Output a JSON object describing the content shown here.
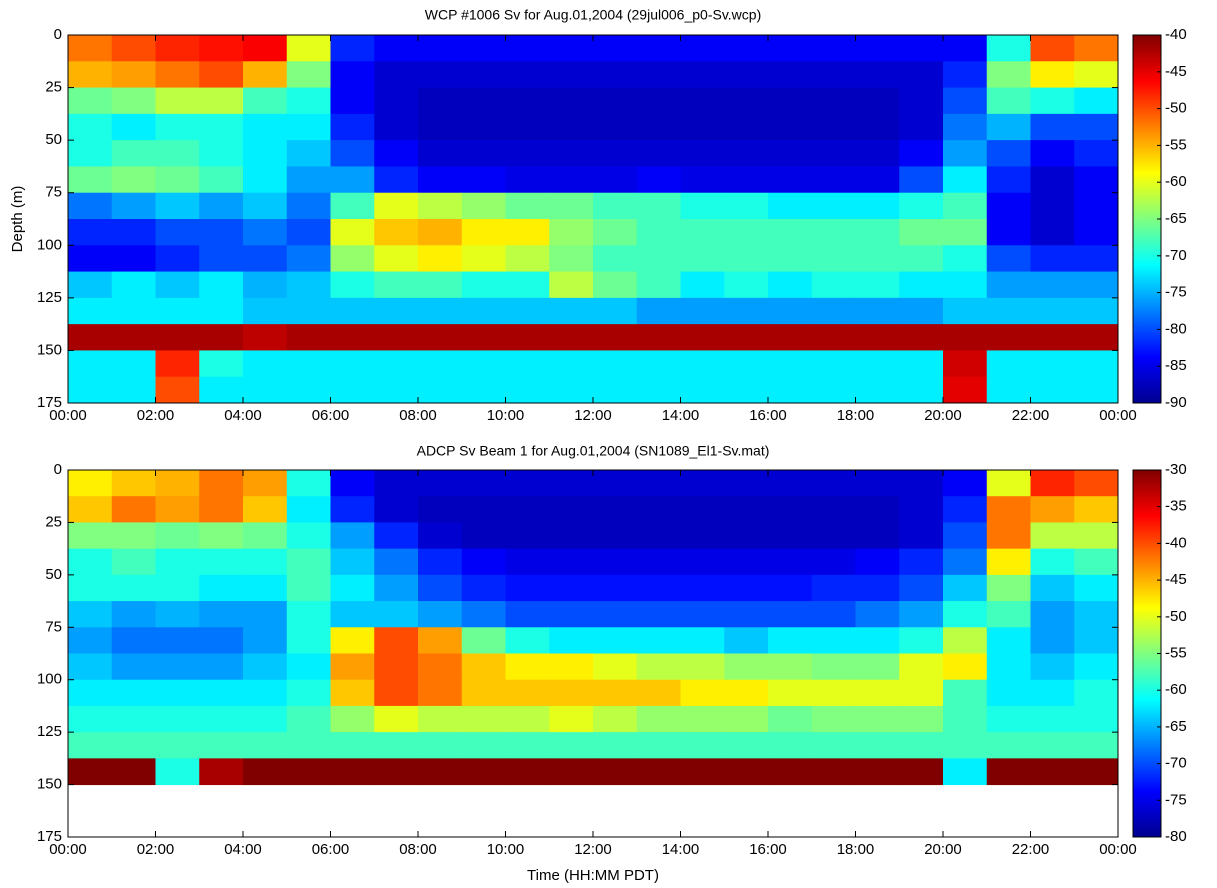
{
  "chart_data": [
    {
      "type": "heatmap",
      "title": "WCP #1006   Sv for Aug.01,2004    (29jul006_p0-Sv.wcp)",
      "ylabel": "Depth (m)",
      "colormap": "jet",
      "xlim": [
        0,
        24
      ],
      "xticks": [
        {
          "value": 0,
          "label": "00:00"
        },
        {
          "value": 2,
          "label": "02:00"
        },
        {
          "value": 4,
          "label": "04:00"
        },
        {
          "value": 6,
          "label": "06:00"
        },
        {
          "value": 8,
          "label": "08:00"
        },
        {
          "value": 10,
          "label": "10:00"
        },
        {
          "value": 12,
          "label": "12:00"
        },
        {
          "value": 14,
          "label": "14:00"
        },
        {
          "value": 16,
          "label": "16:00"
        },
        {
          "value": 18,
          "label": "18:00"
        },
        {
          "value": 20,
          "label": "20:00"
        },
        {
          "value": 22,
          "label": "22:00"
        },
        {
          "value": 24,
          "label": "00:00"
        }
      ],
      "ylim": [
        175,
        0
      ],
      "yticks": [
        0,
        25,
        50,
        75,
        100,
        125,
        150,
        175
      ],
      "clim": [
        -90,
        -40
      ],
      "cticks": [
        -40,
        -45,
        -50,
        -55,
        -60,
        -65,
        -70,
        -75,
        -80,
        -85,
        -90
      ],
      "x": [
        0.5,
        1.5,
        2.5,
        3.5,
        4.5,
        5.5,
        6.5,
        7.5,
        8.5,
        9.5,
        10.5,
        11.5,
        12.5,
        13.5,
        14.5,
        15.5,
        16.5,
        17.5,
        18.5,
        19.5,
        20.5,
        21.5,
        22.5,
        23.5
      ],
      "y": [
        6.25,
        18.75,
        31.25,
        43.75,
        56.25,
        68.75,
        81.25,
        93.75,
        106.25,
        118.75,
        131.25,
        143.75,
        156.25,
        168.75
      ],
      "values": [
        [
          -52,
          -50,
          -48,
          -47,
          -46,
          -60,
          -82,
          -84,
          -84,
          -84,
          -84,
          -84,
          -84,
          -84,
          -84,
          -84,
          -84,
          -84,
          -84,
          -84,
          -84,
          -70,
          -50,
          -52
        ],
        [
          -55,
          -54,
          -52,
          -50,
          -55,
          -65,
          -84,
          -86,
          -86,
          -86,
          -86,
          -86,
          -86,
          -86,
          -86,
          -86,
          -86,
          -86,
          -86,
          -86,
          -82,
          -65,
          -58,
          -60
        ],
        [
          -66,
          -65,
          -62,
          -62,
          -68,
          -70,
          -84,
          -86,
          -87,
          -87,
          -87,
          -87,
          -87,
          -87,
          -87,
          -87,
          -87,
          -87,
          -87,
          -86,
          -80,
          -68,
          -70,
          -72
        ],
        [
          -70,
          -72,
          -70,
          -70,
          -72,
          -72,
          -82,
          -86,
          -87,
          -87,
          -87,
          -87,
          -87,
          -87,
          -87,
          -87,
          -87,
          -87,
          -87,
          -86,
          -78,
          -75,
          -80,
          -80
        ],
        [
          -70,
          -68,
          -68,
          -70,
          -72,
          -74,
          -80,
          -84,
          -86,
          -86,
          -86,
          -86,
          -86,
          -86,
          -86,
          -86,
          -86,
          -86,
          -86,
          -84,
          -76,
          -80,
          -84,
          -82
        ],
        [
          -66,
          -65,
          -66,
          -68,
          -72,
          -76,
          -76,
          -82,
          -84,
          -84,
          -85,
          -85,
          -85,
          -84,
          -85,
          -85,
          -85,
          -85,
          -85,
          -80,
          -72,
          -82,
          -86,
          -84
        ],
        [
          -78,
          -76,
          -74,
          -76,
          -74,
          -78,
          -68,
          -60,
          -62,
          -64,
          -66,
          -66,
          -68,
          -68,
          -70,
          -70,
          -72,
          -72,
          -72,
          -70,
          -68,
          -84,
          -86,
          -84
        ],
        [
          -82,
          -82,
          -80,
          -80,
          -78,
          -80,
          -60,
          -56,
          -55,
          -58,
          -58,
          -64,
          -66,
          -68,
          -68,
          -68,
          -68,
          -68,
          -68,
          -66,
          -66,
          -84,
          -86,
          -84
        ],
        [
          -84,
          -84,
          -82,
          -80,
          -80,
          -78,
          -64,
          -60,
          -58,
          -60,
          -62,
          -65,
          -68,
          -68,
          -68,
          -68,
          -68,
          -68,
          -68,
          -68,
          -70,
          -80,
          -82,
          -82
        ],
        [
          -74,
          -72,
          -74,
          -72,
          -75,
          -74,
          -70,
          -68,
          -68,
          -70,
          -70,
          -62,
          -66,
          -68,
          -72,
          -70,
          -72,
          -70,
          -70,
          -72,
          -72,
          -76,
          -76,
          -76
        ],
        [
          -72,
          -72,
          -72,
          -72,
          -74,
          -74,
          -74,
          -74,
          -74,
          -74,
          -74,
          -74,
          -74,
          -76,
          -76,
          -76,
          -76,
          -76,
          -76,
          -76,
          -74,
          -74,
          -74,
          -74
        ],
        [
          -42,
          -42,
          -42,
          -42,
          -43,
          -42,
          -42,
          -42,
          -42,
          -42,
          -42,
          -42,
          -42,
          -42,
          -42,
          -42,
          -42,
          -42,
          -42,
          -42,
          -42,
          -42,
          -42,
          -42
        ],
        [
          -72,
          -72,
          -48,
          -70,
          -72,
          -72,
          -72,
          -72,
          -72,
          -72,
          -72,
          -72,
          -72,
          -72,
          -72,
          -72,
          -72,
          -72,
          -72,
          -72,
          -44,
          -72,
          -72,
          -72
        ],
        [
          -72,
          -72,
          -50,
          -72,
          -72,
          -72,
          -72,
          -72,
          -72,
          -72,
          -72,
          -72,
          -72,
          -72,
          -72,
          -72,
          -72,
          -72,
          -72,
          -72,
          -45,
          -72,
          -72,
          -72
        ]
      ]
    },
    {
      "type": "heatmap",
      "title": "ADCP  Sv  Beam 1 for  Aug.01,2004     (SN1089_El1-Sv.mat)",
      "xlabel": "Time (HH:MM PDT)",
      "colormap": "jet",
      "xlim": [
        0,
        24
      ],
      "xticks": [
        {
          "value": 0,
          "label": "00:00"
        },
        {
          "value": 2,
          "label": "02:00"
        },
        {
          "value": 4,
          "label": "04:00"
        },
        {
          "value": 6,
          "label": "06:00"
        },
        {
          "value": 8,
          "label": "08:00"
        },
        {
          "value": 10,
          "label": "10:00"
        },
        {
          "value": 12,
          "label": "12:00"
        },
        {
          "value": 14,
          "label": "14:00"
        },
        {
          "value": 16,
          "label": "16:00"
        },
        {
          "value": 18,
          "label": "18:00"
        },
        {
          "value": 20,
          "label": "20:00"
        },
        {
          "value": 22,
          "label": "22:00"
        },
        {
          "value": 24,
          "label": "00:00"
        }
      ],
      "ylim": [
        175,
        0
      ],
      "yticks": [
        0,
        25,
        50,
        75,
        100,
        125,
        150,
        175
      ],
      "clim": [
        -80,
        -30
      ],
      "cticks": [
        -30,
        -35,
        -40,
        -45,
        -50,
        -55,
        -60,
        -65,
        -70,
        -75,
        -80
      ],
      "x": [
        0.5,
        1.5,
        2.5,
        3.5,
        4.5,
        5.5,
        6.5,
        7.5,
        8.5,
        9.5,
        10.5,
        11.5,
        12.5,
        13.5,
        14.5,
        15.5,
        16.5,
        17.5,
        18.5,
        19.5,
        20.5,
        21.5,
        22.5,
        23.5
      ],
      "y": [
        6.25,
        18.75,
        31.25,
        43.75,
        56.25,
        68.75,
        81.25,
        93.75,
        106.25,
        118.75,
        131.25,
        143.75,
        156.25,
        168.75
      ],
      "values": [
        [
          -48,
          -46,
          -45,
          -42,
          -44,
          -60,
          -74,
          -76,
          -76,
          -76,
          -76,
          -76,
          -76,
          -76,
          -76,
          -76,
          -76,
          -76,
          -76,
          -76,
          -74,
          -50,
          -38,
          -40
        ],
        [
          -46,
          -42,
          -44,
          -42,
          -46,
          -62,
          -72,
          -76,
          -77,
          -77,
          -77,
          -77,
          -77,
          -77,
          -77,
          -77,
          -77,
          -77,
          -77,
          -76,
          -72,
          -42,
          -44,
          -46
        ],
        [
          -55,
          -55,
          -56,
          -55,
          -56,
          -60,
          -66,
          -72,
          -76,
          -77,
          -77,
          -77,
          -77,
          -77,
          -77,
          -77,
          -77,
          -77,
          -77,
          -76,
          -70,
          -42,
          -52,
          -52
        ],
        [
          -60,
          -58,
          -60,
          -60,
          -60,
          -58,
          -64,
          -68,
          -72,
          -74,
          -75,
          -75,
          -75,
          -75,
          -75,
          -75,
          -75,
          -75,
          -74,
          -72,
          -68,
          -48,
          -60,
          -58
        ],
        [
          -60,
          -60,
          -60,
          -62,
          -62,
          -58,
          -62,
          -66,
          -70,
          -72,
          -73,
          -73,
          -73,
          -73,
          -73,
          -73,
          -73,
          -72,
          -72,
          -70,
          -64,
          -55,
          -64,
          -62
        ],
        [
          -64,
          -66,
          -65,
          -66,
          -66,
          -60,
          -64,
          -64,
          -66,
          -68,
          -70,
          -70,
          -70,
          -70,
          -70,
          -70,
          -70,
          -70,
          -68,
          -66,
          -60,
          -58,
          -66,
          -64
        ],
        [
          -66,
          -68,
          -68,
          -68,
          -66,
          -60,
          -48,
          -40,
          -44,
          -56,
          -60,
          -62,
          -62,
          -62,
          -62,
          -64,
          -62,
          -62,
          -62,
          -60,
          -52,
          -62,
          -66,
          -64
        ],
        [
          -64,
          -66,
          -66,
          -66,
          -64,
          -62,
          -44,
          -40,
          -42,
          -46,
          -48,
          -48,
          -50,
          -52,
          -52,
          -54,
          -54,
          -55,
          -55,
          -50,
          -48,
          -62,
          -64,
          -62
        ],
        [
          -62,
          -62,
          -62,
          -62,
          -62,
          -60,
          -46,
          -40,
          -42,
          -46,
          -46,
          -46,
          -46,
          -46,
          -48,
          -48,
          -50,
          -50,
          -50,
          -50,
          -58,
          -62,
          -62,
          -60
        ],
        [
          -60,
          -60,
          -60,
          -60,
          -60,
          -58,
          -54,
          -50,
          -52,
          -52,
          -52,
          -50,
          -52,
          -54,
          -54,
          -54,
          -56,
          -55,
          -55,
          -55,
          -58,
          -60,
          -60,
          -60
        ],
        [
          -58,
          -58,
          -58,
          -58,
          -58,
          -58,
          -58,
          -58,
          -58,
          -58,
          -58,
          -58,
          -58,
          -58,
          -58,
          -58,
          -58,
          -58,
          -58,
          -58,
          -58,
          -58,
          -58,
          -58
        ],
        [
          -30,
          -30,
          -60,
          -32,
          -30,
          -30,
          -30,
          -30,
          -30,
          -30,
          -30,
          -30,
          -30,
          -30,
          -30,
          -30,
          -30,
          -30,
          -30,
          -30,
          -62,
          -30,
          -30,
          -30
        ],
        [
          null,
          null,
          null,
          null,
          null,
          null,
          null,
          null,
          null,
          null,
          null,
          null,
          null,
          null,
          null,
          null,
          null,
          null,
          null,
          null,
          null,
          null,
          null,
          null
        ],
        [
          null,
          null,
          null,
          null,
          null,
          null,
          null,
          null,
          null,
          null,
          null,
          null,
          null,
          null,
          null,
          null,
          null,
          null,
          null,
          null,
          null,
          null,
          null,
          null
        ]
      ]
    }
  ]
}
